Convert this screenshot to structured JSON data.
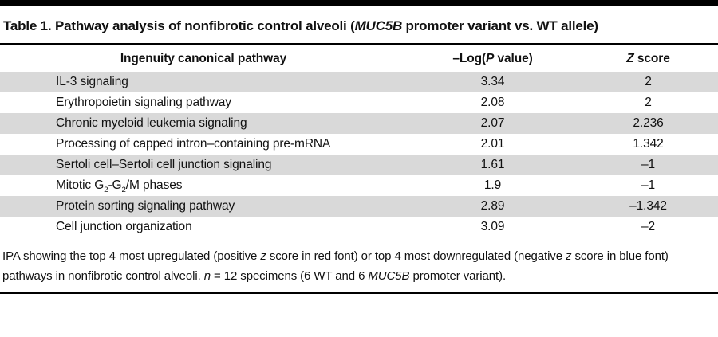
{
  "title_segments": [
    {
      "t": "Table 1. Pathway analysis of nonfibrotic control alveoli ("
    },
    {
      "t": "MUC5B",
      "i": true
    },
    {
      "t": " promoter variant vs. WT allele)"
    }
  ],
  "table": {
    "columns": [
      {
        "key": "pathway",
        "label": [
          {
            "t": "Ingenuity canonical pathway"
          }
        ]
      },
      {
        "key": "neglogp",
        "label": [
          {
            "t": "–Log("
          },
          {
            "t": "P",
            "i": true
          },
          {
            "t": " value)"
          }
        ]
      },
      {
        "key": "zscore",
        "label": [
          {
            "t": "Z",
            "i": true
          },
          {
            "t": " score"
          }
        ]
      }
    ],
    "rows": [
      {
        "pathway": [
          {
            "t": "IL-3 signaling"
          }
        ],
        "neglogp": "3.34",
        "zscore": "2"
      },
      {
        "pathway": [
          {
            "t": "Erythropoietin signaling pathway"
          }
        ],
        "neglogp": "2.08",
        "zscore": "2"
      },
      {
        "pathway": [
          {
            "t": "Chronic myeloid leukemia signaling"
          }
        ],
        "neglogp": "2.07",
        "zscore": "2.236"
      },
      {
        "pathway": [
          {
            "t": "Processing of capped intron–containing pre-mRNA"
          }
        ],
        "neglogp": "2.01",
        "zscore": "1.342"
      },
      {
        "pathway": [
          {
            "t": "Sertoli cell–Sertoli cell junction signaling"
          }
        ],
        "neglogp": "1.61",
        "zscore": "–1"
      },
      {
        "pathway": [
          {
            "t": "Mitotic G"
          },
          {
            "t": "2",
            "sub": true
          },
          {
            "t": "-G"
          },
          {
            "t": "2",
            "sub": true
          },
          {
            "t": "/M phases"
          }
        ],
        "neglogp": "1.9",
        "zscore": "–1"
      },
      {
        "pathway": [
          {
            "t": "Protein sorting signaling pathway"
          }
        ],
        "neglogp": "2.89",
        "zscore": "–1.342"
      },
      {
        "pathway": [
          {
            "t": "Cell junction organization"
          }
        ],
        "neglogp": "3.09",
        "zscore": "–2"
      }
    ]
  },
  "caption_segments": [
    {
      "t": "IPA showing the top 4 most upregulated (positive "
    },
    {
      "t": "z",
      "i": true
    },
    {
      "t": " score in red font) or top 4 most downregulated (negative "
    },
    {
      "t": "z",
      "i": true
    },
    {
      "t": " score in blue font) pathways in nonfibrotic control alveoli. "
    },
    {
      "t": "n",
      "i": true
    },
    {
      "t": " = 12 specimens (6 WT and 6 "
    },
    {
      "t": "MUC5B",
      "i": true
    },
    {
      "t": " promoter variant)."
    }
  ],
  "colors": {
    "stripe": "#d9d9d9",
    "rule": "#000000",
    "text": "#111111"
  }
}
